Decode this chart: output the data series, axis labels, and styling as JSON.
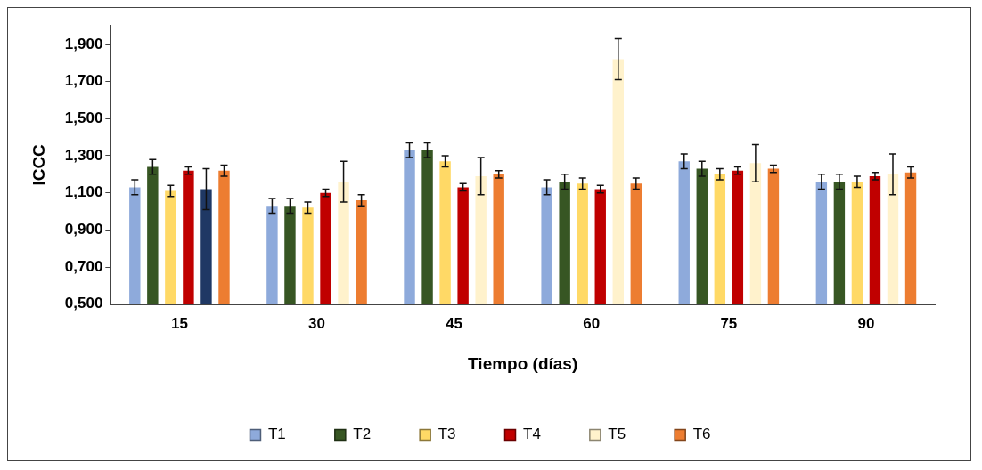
{
  "chart_data": {
    "type": "bar",
    "xlabel": "Tiempo (días)",
    "ylabel": "ICCC",
    "categories": [
      "15",
      "30",
      "45",
      "60",
      "75",
      "90"
    ],
    "series": [
      {
        "name": "T1",
        "color": "#8eaadb",
        "values": [
          1.13,
          1.03,
          1.33,
          1.13,
          1.27,
          1.16
        ],
        "errors": [
          0.04,
          0.04,
          0.04,
          0.04,
          0.04,
          0.04
        ]
      },
      {
        "name": "T2",
        "color": "#375623",
        "values": [
          1.24,
          1.03,
          1.33,
          1.16,
          1.23,
          1.16
        ],
        "errors": [
          0.04,
          0.04,
          0.04,
          0.04,
          0.04,
          0.04
        ]
      },
      {
        "name": "T3",
        "color": "#ffd966",
        "values": [
          1.11,
          1.02,
          1.27,
          1.15,
          1.2,
          1.16
        ],
        "errors": [
          0.03,
          0.03,
          0.03,
          0.03,
          0.03,
          0.03
        ]
      },
      {
        "name": "T4",
        "color": "#c00000",
        "values": [
          1.22,
          1.1,
          1.13,
          1.12,
          1.22,
          1.19
        ],
        "errors": [
          0.02,
          0.02,
          0.02,
          0.02,
          0.02,
          0.02
        ]
      },
      {
        "name": "T5",
        "color": "#fff2cc",
        "colors": [
          "#1f3864",
          "#fff2cc",
          "#fff2cc",
          "#fff2cc",
          "#fff2cc",
          "#fff2cc"
        ],
        "values": [
          1.12,
          1.16,
          1.19,
          1.82,
          1.26,
          1.2
        ],
        "errors": [
          0.11,
          0.11,
          0.1,
          0.11,
          0.1,
          0.11
        ]
      },
      {
        "name": "T6",
        "color": "#ed7d31",
        "values": [
          1.22,
          1.06,
          1.2,
          1.15,
          1.23,
          1.21
        ],
        "errors": [
          0.03,
          0.03,
          0.02,
          0.03,
          0.02,
          0.03
        ]
      }
    ],
    "ylim": [
      0.5,
      2.0
    ],
    "yticks": [
      {
        "value": 0.5,
        "label": "0,500"
      },
      {
        "value": 0.7,
        "label": "0,700"
      },
      {
        "value": 0.9,
        "label": "0,900"
      },
      {
        "value": 1.1,
        "label": "1,100"
      },
      {
        "value": 1.3,
        "label": "1,300"
      },
      {
        "value": 1.5,
        "label": "1,500"
      },
      {
        "value": 1.7,
        "label": "1,700"
      },
      {
        "value": 1.9,
        "label": "1,900"
      }
    ],
    "grid": false,
    "legend": "bottom"
  }
}
